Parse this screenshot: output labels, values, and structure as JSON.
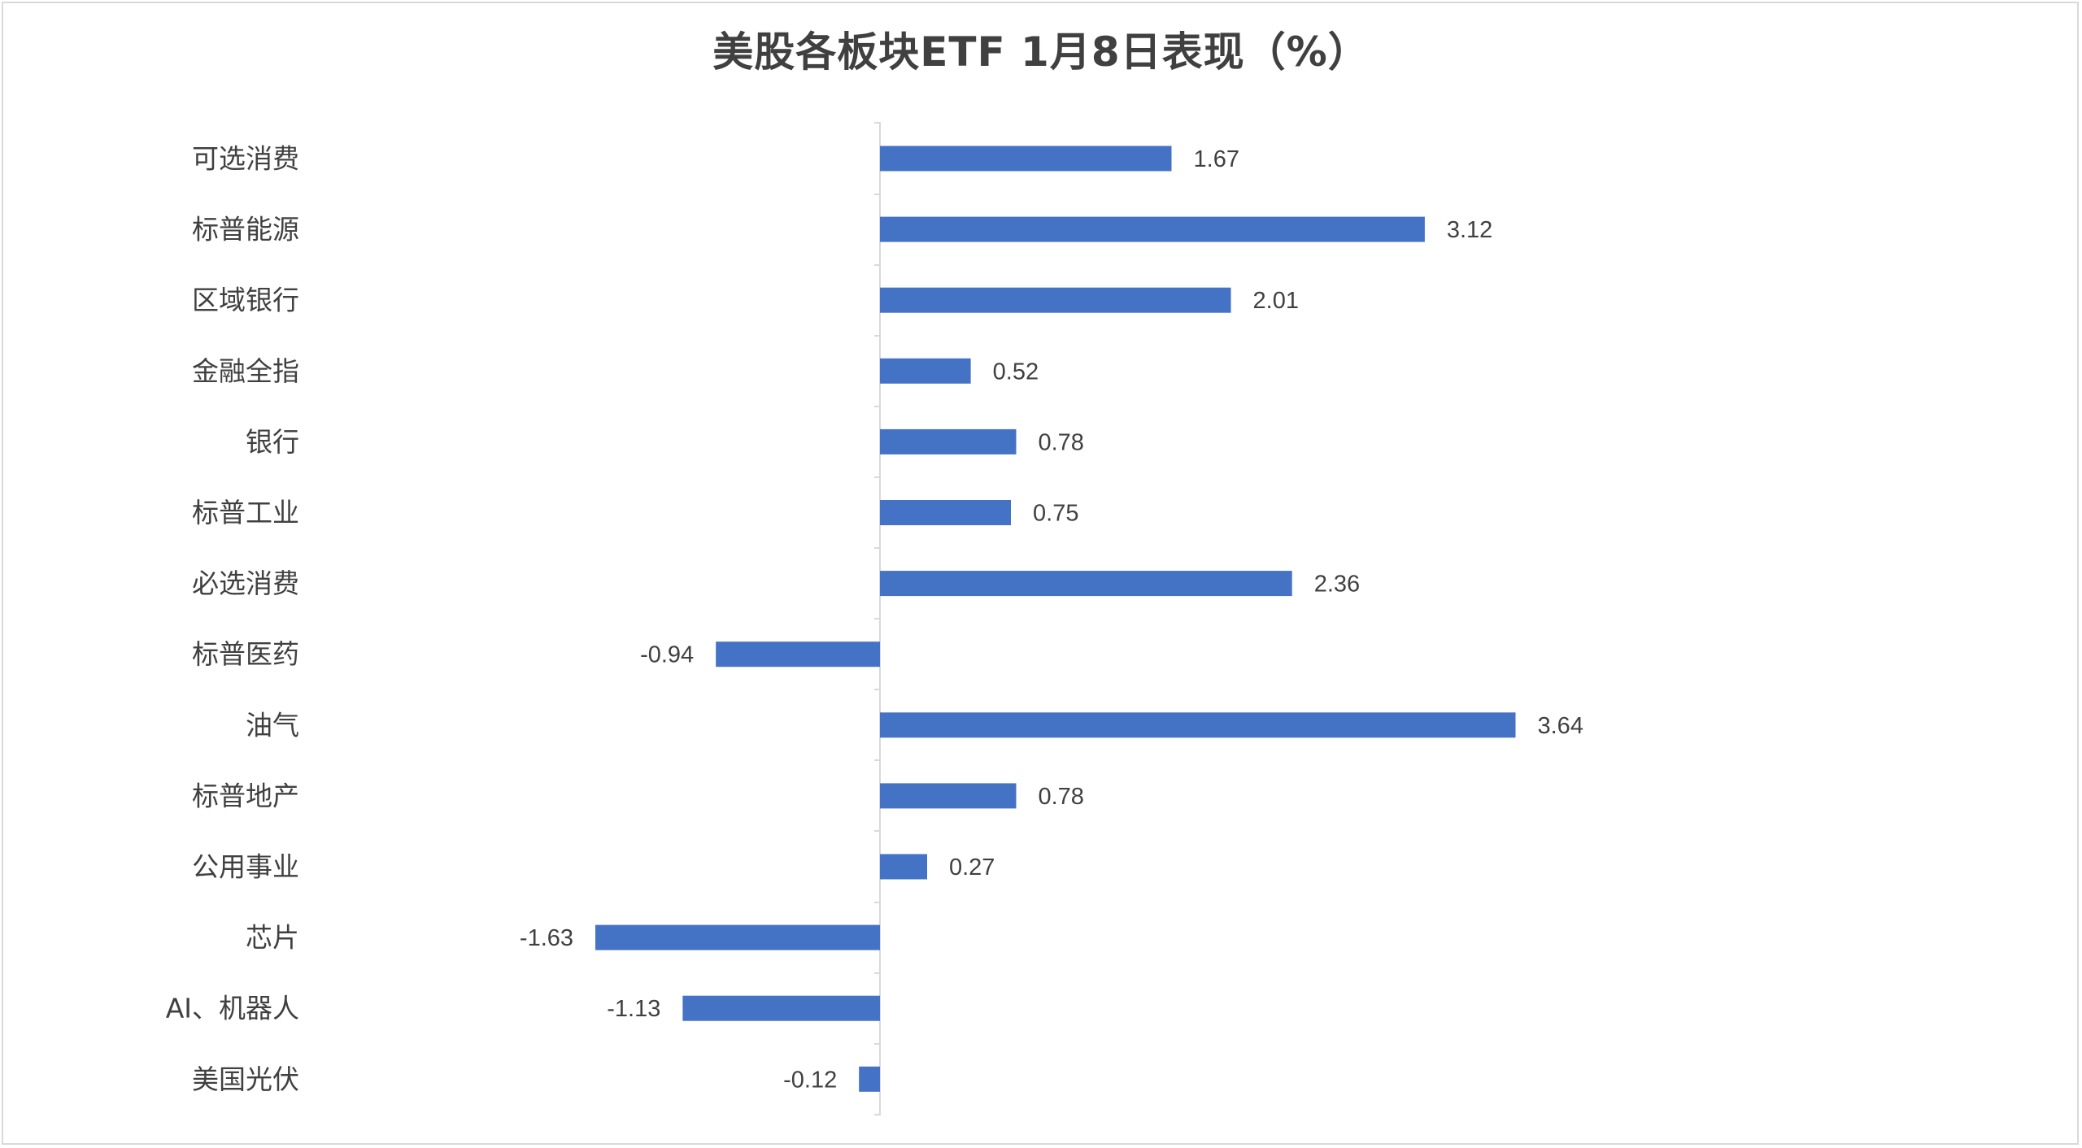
{
  "chart_data": {
    "type": "bar",
    "orientation": "horizontal",
    "title": "美股各板块ETF  1月8日表现（%）",
    "categories": [
      "可选消费",
      "标普能源",
      "区域银行",
      "金融全指",
      "银行",
      "标普工业",
      "必选消费",
      "标普医药",
      "油气",
      "标普地产",
      "公用事业",
      "芯片",
      "AI、机器人",
      "美国光伏"
    ],
    "values": [
      1.67,
      3.12,
      2.01,
      0.52,
      0.78,
      0.75,
      2.36,
      -0.94,
      3.64,
      0.78,
      0.27,
      -1.63,
      -1.13,
      -0.12
    ],
    "value_labels": [
      "1.67",
      "3.12",
      "2.01",
      "0.52",
      "0.78",
      "0.75",
      "2.36",
      "-0.94",
      "3.64",
      "0.78",
      "0.27",
      "-1.63",
      "-1.13",
      "-0.12"
    ],
    "xlabel": "",
    "ylabel": "",
    "xlim": [
      -2,
      4
    ],
    "grid": false,
    "legend": "none",
    "bar_color": "#4472C4",
    "axis_color": "#d9d9d9",
    "text_color": "#404040"
  }
}
